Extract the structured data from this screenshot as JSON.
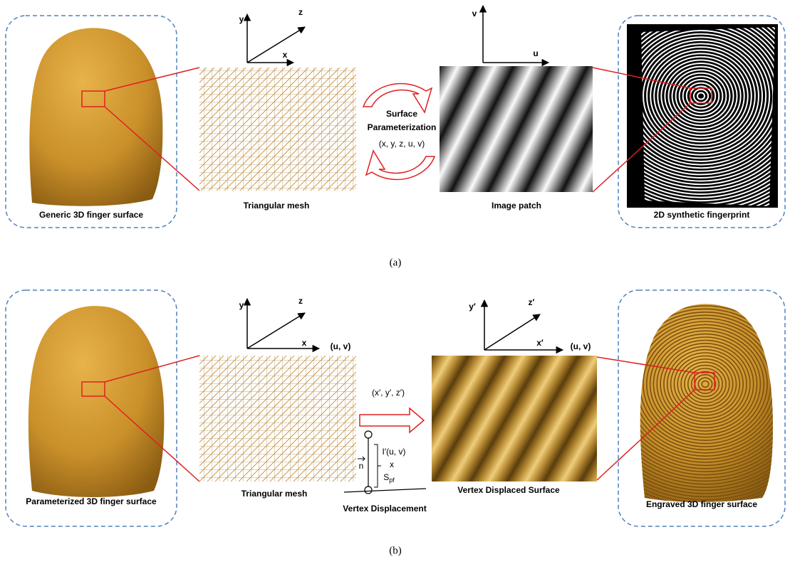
{
  "panel_a": {
    "left_caption": "Generic 3D finger surface",
    "axes_3d": {
      "y": "y",
      "z": "z",
      "x": "x"
    },
    "mesh_caption": "Triangular mesh",
    "parameterization": {
      "line1": "Surface",
      "line2": "Parameterization",
      "coords": "(x, y, z, u, v)"
    },
    "axes_2d": {
      "v": "v",
      "u": "u"
    },
    "patch_caption": "Image patch",
    "right_caption": "2D synthetic fingerprint",
    "label": "(a)"
  },
  "panel_b": {
    "left_caption": "Parameterized 3D finger surface",
    "axes_3d": {
      "y": "y",
      "z": "z",
      "x": "x",
      "uv": "(u, v)"
    },
    "mesh_caption": "Triangular mesh",
    "mapping": "(x′, y′, z′)",
    "displacement": {
      "normal": "n",
      "line1": "I′(u, v)",
      "line2": "x",
      "scale": "S",
      "scale_sub": "pf",
      "caption": "Vertex Displacement"
    },
    "axes_3d_prime": {
      "y": "y′",
      "z": "z′",
      "x": "x′",
      "uv": "(u, v)"
    },
    "surface_caption": "Vertex Displaced Surface",
    "right_caption": "Engraved 3D finger surface",
    "label": "(b)"
  }
}
